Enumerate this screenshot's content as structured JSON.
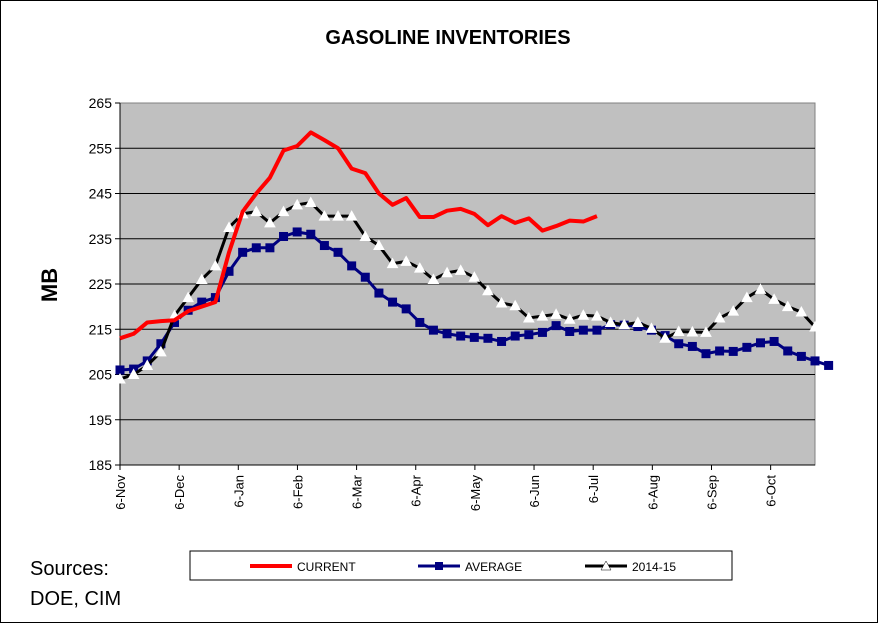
{
  "chart_data": {
    "type": "line",
    "title": "GASOLINE INVENTORIES",
    "xlabel": "",
    "ylabel": "MB",
    "ylim": [
      185,
      265
    ],
    "yticks": [
      185,
      195,
      205,
      215,
      225,
      235,
      245,
      255,
      265
    ],
    "xticks": [
      "6-Nov",
      "6-Dec",
      "6-Jan",
      "6-Feb",
      "6-Mar",
      "6-Apr",
      "6-May",
      "6-Jun",
      "6-Jul",
      "6-Aug",
      "6-Sep",
      "6-Oct"
    ],
    "grid": true,
    "legend": "bottom",
    "series": [
      {
        "name": "CURRENT",
        "color": "#ff0000",
        "marker": "none",
        "values": [
          213,
          214,
          216.5,
          216.8,
          217,
          219,
          220,
          221,
          232,
          241,
          245,
          248.5,
          254.5,
          255.5,
          258.5,
          256.8,
          255,
          250.5,
          249.5,
          245,
          242.5,
          244,
          239.8,
          239.8,
          241.2,
          241.6,
          240.5,
          238,
          240,
          238.5,
          239.5,
          236.8,
          237.8,
          239,
          238.8,
          240
        ]
      },
      {
        "name": "AVERAGE",
        "color": "#000080",
        "marker": "square",
        "values": [
          206,
          206.2,
          208,
          211.8,
          216.5,
          219.2,
          221,
          222,
          227.8,
          232,
          233,
          233,
          235.5,
          236.5,
          236,
          233.5,
          232,
          229,
          226.5,
          223,
          221,
          219.5,
          216.5,
          214.8,
          214,
          213.5,
          213.2,
          213,
          212.3,
          213.5,
          213.8,
          214.3,
          215.8,
          214.5,
          214.8,
          214.8,
          216,
          215.9,
          215.6,
          214.8,
          213.6,
          211.8,
          211.2,
          209.6,
          210.2,
          210.1,
          211,
          212,
          212.3,
          210.2,
          209,
          208,
          207
        ]
      },
      {
        "name": "2014-15",
        "color": "#000000",
        "marker": "triangle",
        "values": [
          204,
          205,
          207,
          210,
          218,
          222,
          226,
          229,
          237.5,
          240.5,
          241,
          238.5,
          241,
          242.5,
          243,
          240,
          240,
          240,
          235.5,
          233.5,
          229.5,
          230,
          228.5,
          226,
          227.5,
          228,
          226.5,
          223.5,
          220.8,
          220.2,
          217.5,
          217.9,
          218.3,
          217.2,
          218.1,
          217.9,
          216.5,
          216,
          216.5,
          215.2,
          213,
          214.5,
          214.4,
          214.3,
          217.5,
          219,
          222,
          223.8,
          221.6,
          220,
          218.8,
          215.5
        ]
      }
    ]
  },
  "sources": {
    "line1": "Sources:",
    "line2": "DOE, CIM"
  }
}
